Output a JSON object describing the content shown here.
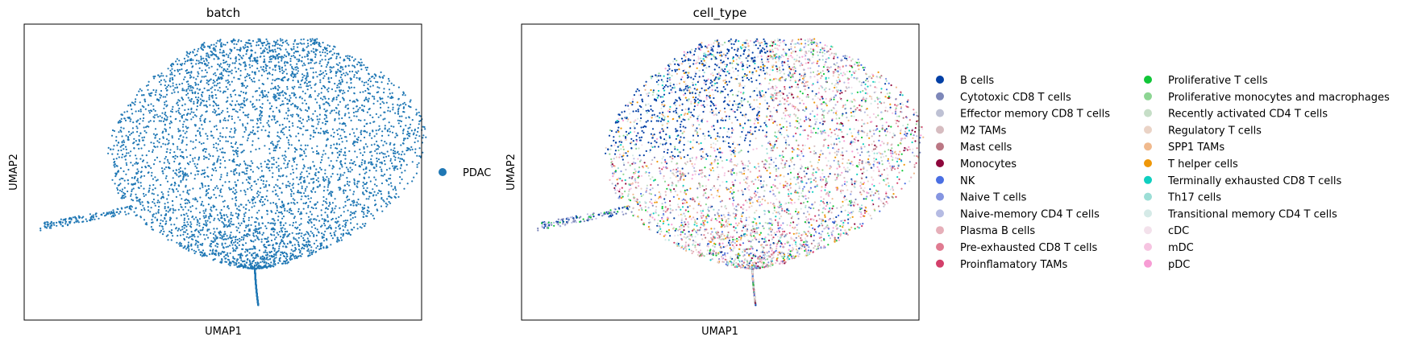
{
  "chart_data": [
    {
      "type": "scatter",
      "title": "batch",
      "xlabel": "UMAP1",
      "ylabel": "UMAP2",
      "grid": false,
      "ticks": false,
      "legend_position": "right",
      "series": [
        {
          "name": "PDAC",
          "color": "#1f77b4"
        }
      ]
    },
    {
      "type": "scatter",
      "title": "cell_type",
      "xlabel": "UMAP1",
      "ylabel": "UMAP2",
      "grid": false,
      "ticks": false,
      "legend_position": "right",
      "legend_columns": 2,
      "series": [
        {
          "name": "B cells",
          "color": "#023fa5"
        },
        {
          "name": "Cytotoxic CD8 T cells",
          "color": "#7d87b9"
        },
        {
          "name": "Effector memory CD8 T cells",
          "color": "#bec1d4"
        },
        {
          "name": "M2 TAMs",
          "color": "#d6bcc0"
        },
        {
          "name": "Mast cells",
          "color": "#bb7784"
        },
        {
          "name": "Monocytes",
          "color": "#8e063b"
        },
        {
          "name": "NK",
          "color": "#4a6fe3"
        },
        {
          "name": "Naive T cells",
          "color": "#8595e1"
        },
        {
          "name": "Naive-memory CD4 T cells",
          "color": "#b5bbe3"
        },
        {
          "name": "Plasma B cells",
          "color": "#e6afb9"
        },
        {
          "name": "Pre-exhausted CD8 T cells",
          "color": "#e07b91"
        },
        {
          "name": "Proinflamatory TAMs",
          "color": "#d33f6a"
        },
        {
          "name": "Proliferative T cells",
          "color": "#11c638"
        },
        {
          "name": "Proliferative monocytes and macrophages",
          "color": "#8dd593"
        },
        {
          "name": "Recently activated CD4 T cells",
          "color": "#c6dec7"
        },
        {
          "name": "Regulatory T cells",
          "color": "#ead3c6"
        },
        {
          "name": "SPP1 TAMs",
          "color": "#f0b98d"
        },
        {
          "name": "T helper cells",
          "color": "#ef9708"
        },
        {
          "name": "Terminally exhausted CD8 T cells",
          "color": "#0fcfc0"
        },
        {
          "name": "Th17 cells",
          "color": "#9cded6"
        },
        {
          "name": "Transitional memory CD4 T cells",
          "color": "#d5eae7"
        },
        {
          "name": "cDC",
          "color": "#f3e1eb"
        },
        {
          "name": "mDC",
          "color": "#f6c4e1"
        },
        {
          "name": "pDC",
          "color": "#f79cd4"
        }
      ]
    }
  ]
}
